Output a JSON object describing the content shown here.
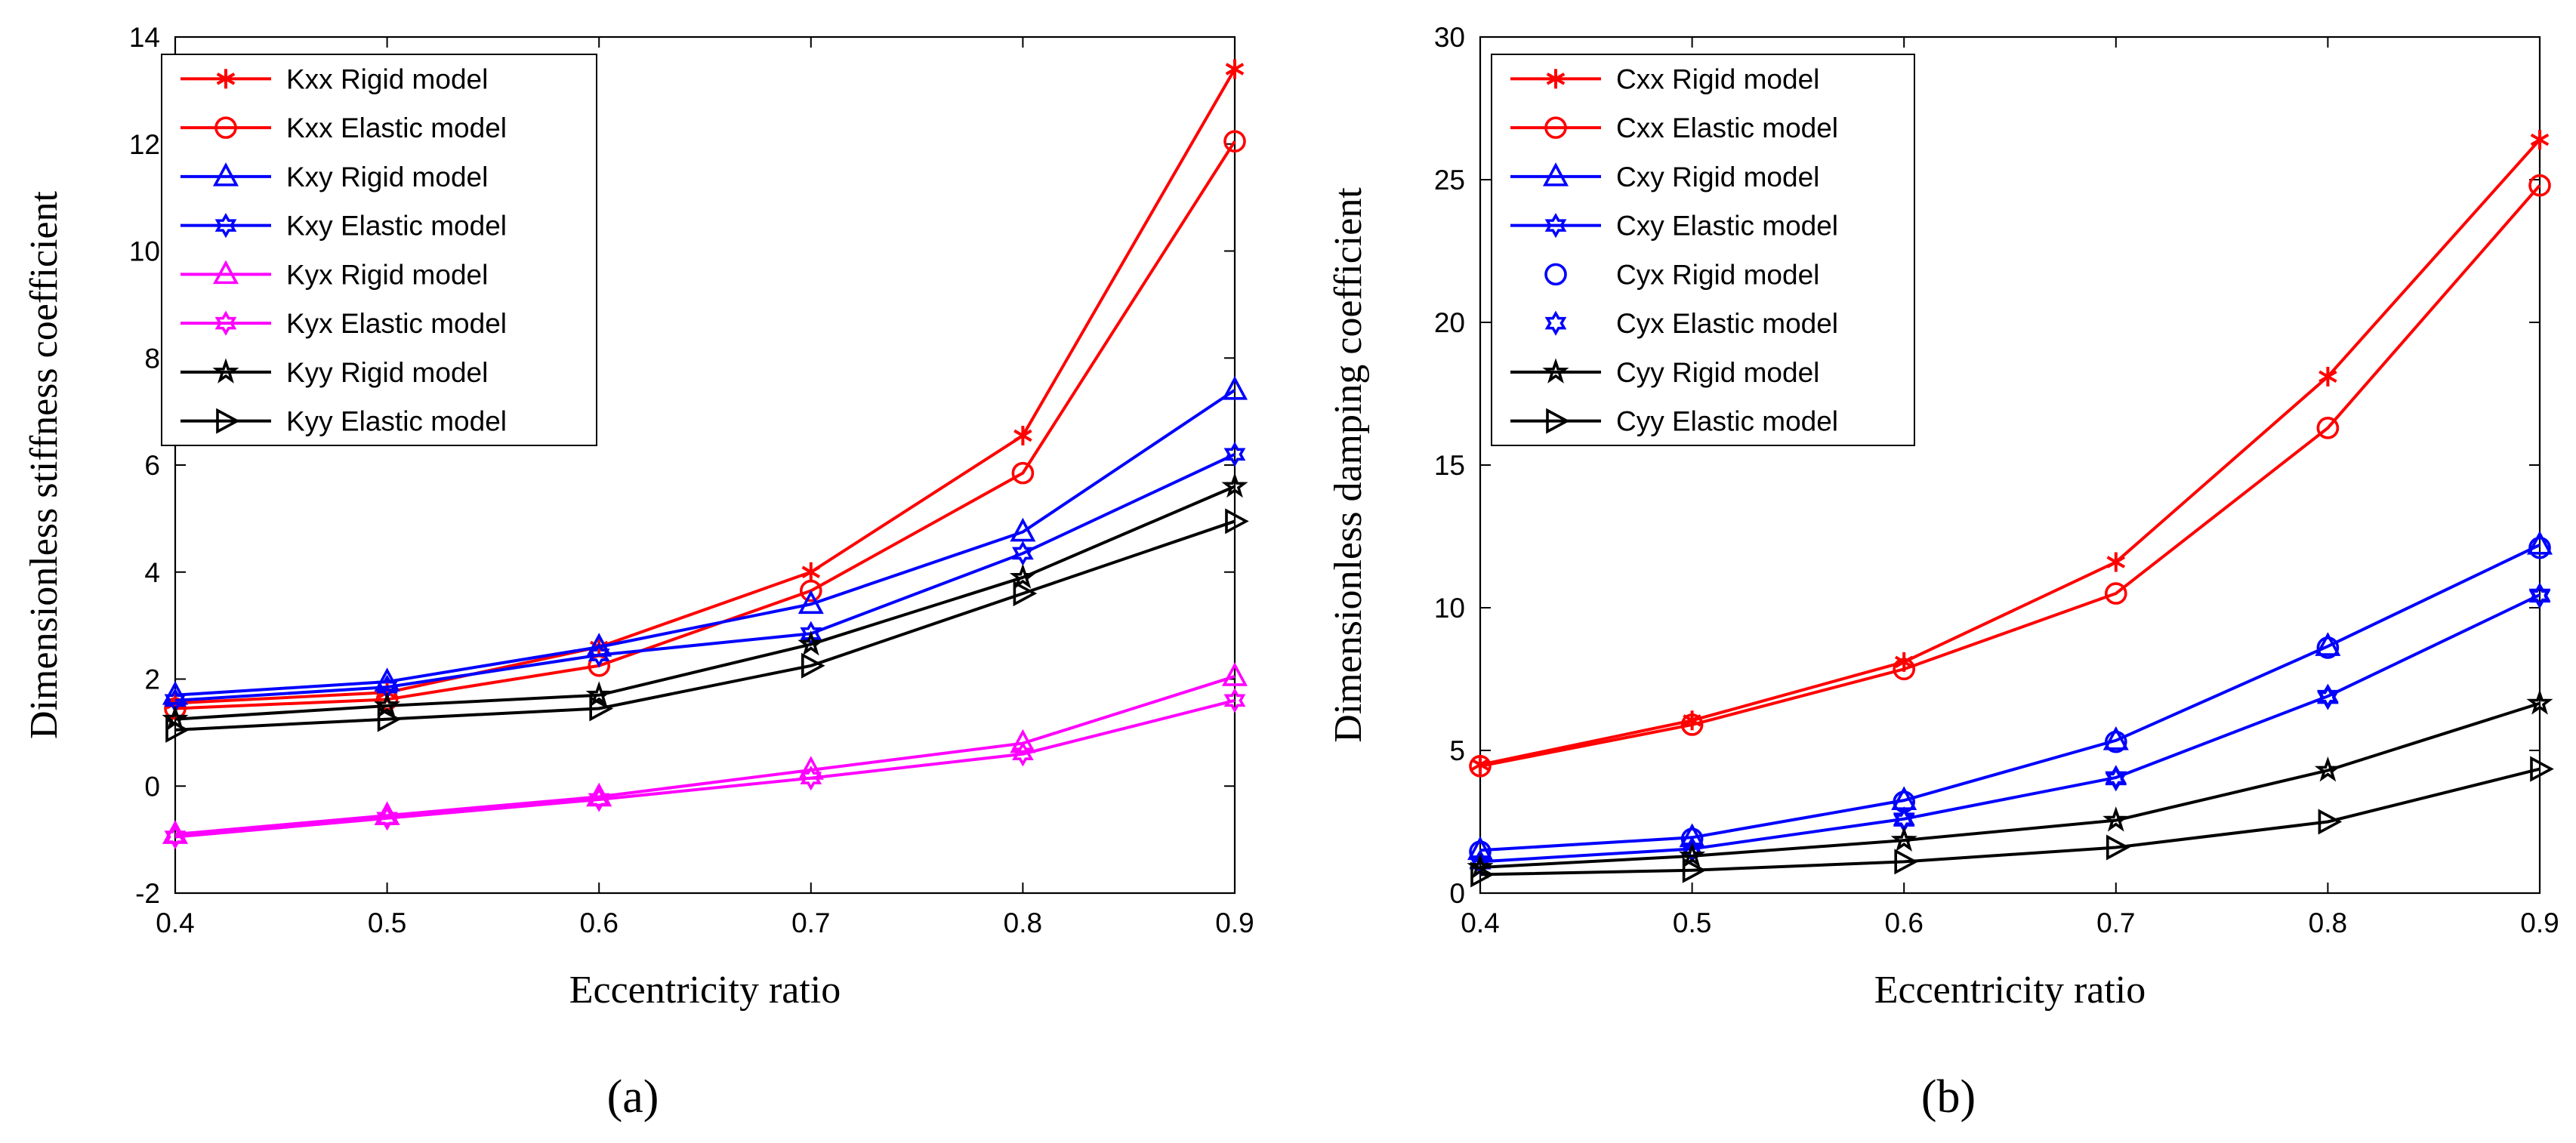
{
  "chart_data": [
    {
      "type": "line",
      "panel": "a",
      "caption": "(a)",
      "title": "",
      "xlabel": "Eccentricity ratio",
      "ylabel": "Dimensionless stiffness coefficient",
      "x": [
        0.4,
        0.5,
        0.6,
        0.7,
        0.8,
        0.9
      ],
      "xlim": [
        0.4,
        0.9
      ],
      "ylim": [
        -2,
        14
      ],
      "xticks": [
        0.4,
        0.5,
        0.6,
        0.7,
        0.8,
        0.9
      ],
      "xtick_labels": [
        "0.4",
        "0.5",
        "0.6",
        "0.7",
        "0.8",
        "0.9"
      ],
      "yticks": [
        -2,
        0,
        2,
        4,
        6,
        8,
        10,
        12,
        14
      ],
      "ytick_labels": [
        "-2",
        "0",
        "2",
        "4",
        "6",
        "8",
        "10",
        "12",
        "14"
      ],
      "grid": false,
      "legend_position": "top-left",
      "series": [
        {
          "name": "Kxx Rigid model",
          "color": "#ff0000",
          "marker": "asterisk",
          "line": true,
          "values": [
            1.55,
            1.75,
            2.6,
            4.0,
            6.55,
            13.4
          ]
        },
        {
          "name": "Kxx Elastic model",
          "color": "#ff0000",
          "marker": "circle",
          "line": true,
          "values": [
            1.45,
            1.62,
            2.25,
            3.65,
            5.85,
            12.05
          ]
        },
        {
          "name": "Kxy Rigid model",
          "color": "#0000ff",
          "marker": "triangle-up",
          "line": true,
          "values": [
            1.7,
            1.95,
            2.6,
            3.4,
            4.75,
            7.4
          ]
        },
        {
          "name": "Kxy Elastic model",
          "color": "#0000ff",
          "marker": "hexagram",
          "line": true,
          "values": [
            1.6,
            1.85,
            2.45,
            2.85,
            4.35,
            6.2
          ]
        },
        {
          "name": "Kyx Rigid model",
          "color": "#ff00ff",
          "marker": "triangle-up",
          "line": true,
          "values": [
            -0.9,
            -0.55,
            -0.2,
            0.3,
            0.8,
            2.05
          ]
        },
        {
          "name": "Kyx Elastic model",
          "color": "#ff00ff",
          "marker": "hexagram",
          "line": true,
          "values": [
            -0.95,
            -0.6,
            -0.25,
            0.15,
            0.6,
            1.6
          ]
        },
        {
          "name": "Kyy Rigid model",
          "color": "#000000",
          "marker": "pentagram",
          "line": true,
          "values": [
            1.25,
            1.5,
            1.7,
            2.65,
            3.9,
            5.6
          ]
        },
        {
          "name": "Kyy Elastic model",
          "color": "#000000",
          "marker": "triangle-right",
          "line": true,
          "values": [
            1.05,
            1.25,
            1.45,
            2.25,
            3.6,
            4.95
          ]
        }
      ]
    },
    {
      "type": "line",
      "panel": "b",
      "caption": "(b)",
      "title": "",
      "xlabel": "Eccentricity ratio",
      "ylabel": "Dimensionless damping coefficient",
      "x": [
        0.4,
        0.5,
        0.6,
        0.7,
        0.8,
        0.9
      ],
      "xlim": [
        0.4,
        0.9
      ],
      "ylim": [
        0,
        30
      ],
      "xticks": [
        0.4,
        0.5,
        0.6,
        0.7,
        0.8,
        0.9
      ],
      "xtick_labels": [
        "0.4",
        "0.5",
        "0.6",
        "0.7",
        "0.8",
        "0.9"
      ],
      "yticks": [
        0,
        5,
        10,
        15,
        20,
        25,
        30
      ],
      "ytick_labels": [
        "0",
        "5",
        "10",
        "15",
        "20",
        "25",
        "30"
      ],
      "grid": false,
      "legend_position": "top-left",
      "series": [
        {
          "name": "Cxx Rigid model",
          "color": "#ff0000",
          "marker": "asterisk",
          "line": true,
          "values": [
            4.5,
            6.05,
            8.1,
            11.6,
            18.1,
            26.4
          ]
        },
        {
          "name": "Cxx Elastic model",
          "color": "#ff0000",
          "marker": "circle",
          "line": true,
          "values": [
            4.45,
            5.9,
            7.85,
            10.5,
            16.3,
            24.8
          ]
        },
        {
          "name": "Cxy Rigid model",
          "color": "#0000ff",
          "marker": "triangle-up",
          "line": true,
          "values": [
            1.5,
            1.95,
            3.25,
            5.35,
            8.65,
            12.2
          ]
        },
        {
          "name": "Cxy Elastic model",
          "color": "#0000ff",
          "marker": "hexagram",
          "line": true,
          "values": [
            1.1,
            1.55,
            2.6,
            4.05,
            6.9,
            10.45
          ]
        },
        {
          "name": "Cyx Rigid model",
          "color": "#0000ff",
          "marker": "circle",
          "line": false,
          "values": [
            1.45,
            1.9,
            3.2,
            5.3,
            8.6,
            12.1
          ]
        },
        {
          "name": "Cyx Elastic model",
          "color": "#0000ff",
          "marker": "hexagram",
          "line": false,
          "values": [
            1.05,
            1.5,
            2.55,
            4.0,
            6.85,
            10.4
          ]
        },
        {
          "name": "Cyy Rigid model",
          "color": "#000000",
          "marker": "pentagram",
          "line": true,
          "values": [
            0.9,
            1.3,
            1.85,
            2.55,
            4.3,
            6.65
          ]
        },
        {
          "name": "Cyy Elastic model",
          "color": "#000000",
          "marker": "triangle-right",
          "line": true,
          "values": [
            0.65,
            0.8,
            1.1,
            1.6,
            2.5,
            4.35
          ]
        }
      ]
    }
  ]
}
